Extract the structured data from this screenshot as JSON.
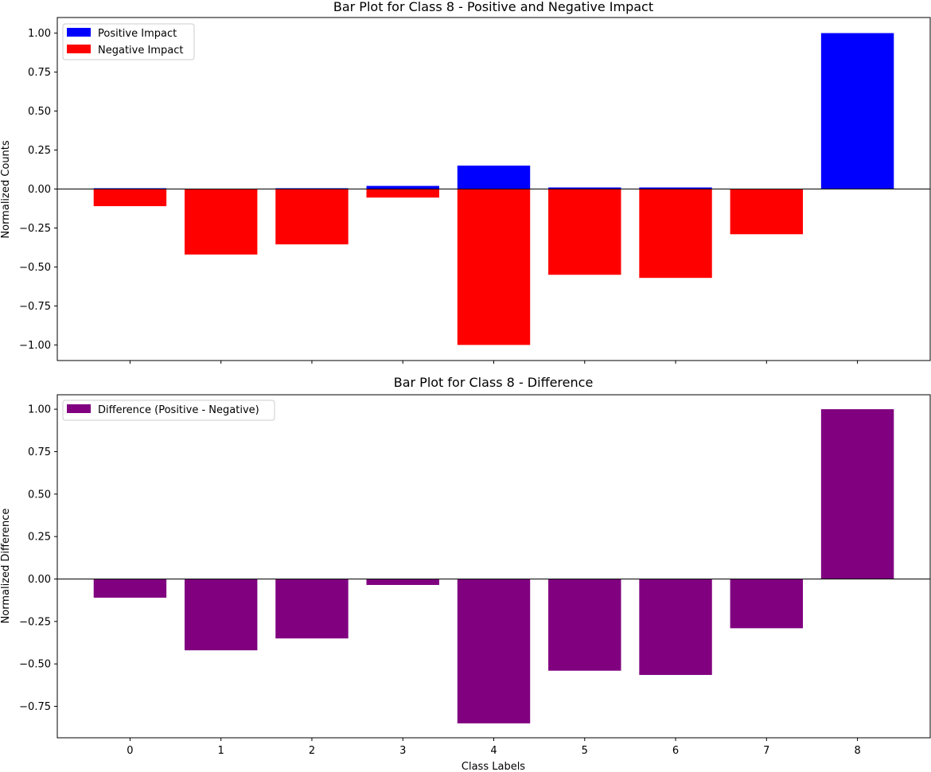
{
  "chart_data": [
    {
      "type": "bar",
      "title": "Bar Plot for Class 8 - Positive and Negative Impact",
      "xlabel": "",
      "ylabel": "Normalized Counts",
      "categories": [
        "0",
        "1",
        "2",
        "3",
        "4",
        "5",
        "6",
        "7",
        "8"
      ],
      "series": [
        {
          "name": "Positive Impact",
          "color": "#0000ff",
          "values": [
            0.005,
            0.0,
            0.005,
            0.02,
            0.15,
            0.01,
            0.01,
            0.0,
            1.0
          ]
        },
        {
          "name": "Negative Impact",
          "color": "#ff0000",
          "values": [
            -0.11,
            -0.42,
            -0.355,
            -0.055,
            -1.0,
            -0.55,
            -0.57,
            -0.29,
            0.0
          ]
        }
      ],
      "ylim": [
        -1.1,
        1.1
      ],
      "yticks": [
        "1.00",
        "0.75",
        "0.50",
        "0.25",
        "0.00",
        "−0.25",
        "−0.50",
        "−0.75",
        "−1.00"
      ],
      "ytick_values": [
        1.0,
        0.75,
        0.5,
        0.25,
        0.0,
        -0.25,
        -0.5,
        -0.75,
        -1.0
      ],
      "show_xtick_labels": false,
      "legend_placement": "top-left",
      "grid": false,
      "zero_line": true
    },
    {
      "type": "bar",
      "title": "Bar Plot for Class 8 - Difference",
      "xlabel": "Class Labels",
      "ylabel": "Normalized Difference",
      "categories": [
        "0",
        "1",
        "2",
        "3",
        "4",
        "5",
        "6",
        "7",
        "8"
      ],
      "series": [
        {
          "name": "Difference (Positive - Negative)",
          "color": "#800080",
          "values": [
            -0.11,
            -0.42,
            -0.35,
            -0.035,
            -0.85,
            -0.54,
            -0.565,
            -0.29,
            1.0
          ]
        }
      ],
      "ylim": [
        -0.935,
        1.085
      ],
      "yticks": [
        "1.00",
        "0.75",
        "0.50",
        "0.25",
        "0.00",
        "−0.25",
        "−0.50",
        "−0.75"
      ],
      "ytick_values": [
        1.0,
        0.75,
        0.5,
        0.25,
        0.0,
        -0.25,
        -0.5,
        -0.75
      ],
      "show_xtick_labels": true,
      "legend_placement": "top-left",
      "grid": false,
      "zero_line": true
    }
  ]
}
